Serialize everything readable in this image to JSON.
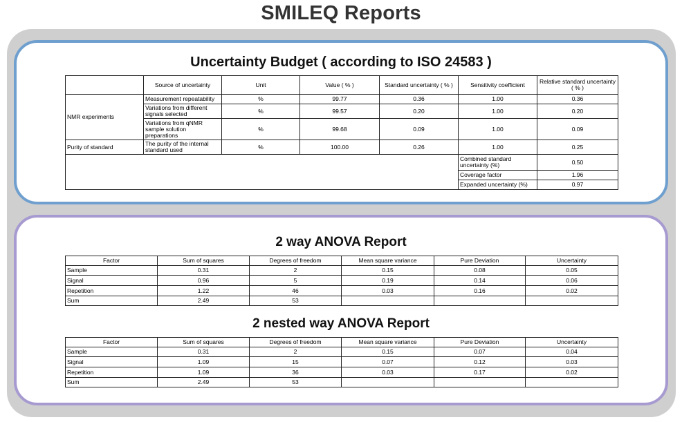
{
  "page_title": "SMILEQ Reports",
  "budget": {
    "title": "Uncertainty Budget ( according to ISO 24583 )",
    "headers": [
      "Source of uncertainty",
      "Unit",
      "Value ( % )",
      "Standard uncertainty ( % )",
      "Sensitivity coefficient",
      "Relative standard uncertainty ( % )"
    ],
    "groups": {
      "nmr": "NMR experiments",
      "purity": "Purity of standard"
    },
    "rows": [
      {
        "source": "Measurement repeatability",
        "unit": "%",
        "value": "99.77",
        "std": "0.36",
        "sens": "1.00",
        "rel": "0.36"
      },
      {
        "source": "Variations from different signals selected",
        "unit": "%",
        "value": "99.57",
        "std": "0.20",
        "sens": "1.00",
        "rel": "0.20"
      },
      {
        "source": "Variations from qNMR sample solution preparations",
        "unit": "%",
        "value": "99.68",
        "std": "0.09",
        "sens": "1.00",
        "rel": "0.09"
      },
      {
        "source": "The purity of the internal standard used",
        "unit": "%",
        "value": "100.00",
        "std": "0.26",
        "sens": "1.00",
        "rel": "0.25"
      }
    ],
    "summary": [
      {
        "label": "Combined standard uncertainty (%)",
        "value": "0.50"
      },
      {
        "label": "Coverage factor",
        "value": "1.96"
      },
      {
        "label": "Expanded uncertainty (%)",
        "value": "0.97"
      }
    ]
  },
  "anova": {
    "title": "2 way ANOVA Report",
    "headers": [
      "Factor",
      "Sum of squares",
      "Degrees of freedom",
      "Mean square variance",
      "Pure Deviation",
      "Uncertainty"
    ],
    "rows": [
      [
        "Sample",
        "0.31",
        "2",
        "0.15",
        "0.08",
        "0.05"
      ],
      [
        "Signal",
        "0.96",
        "5",
        "0.19",
        "0.14",
        "0.06"
      ],
      [
        "Repetition",
        "1.22",
        "46",
        "0.03",
        "0.16",
        "0.02"
      ],
      [
        "Sum",
        "2.49",
        "53",
        "",
        "",
        ""
      ]
    ]
  },
  "nested": {
    "title": "2 nested way ANOVA Report",
    "headers": [
      "Factor",
      "Sum of squares",
      "Degrees of freedom",
      "Mean square variance",
      "Pure Deviation",
      "Uncertainty"
    ],
    "rows": [
      [
        "Sample",
        "0.31",
        "2",
        "0.15",
        "0.07",
        "0.04"
      ],
      [
        "Signal",
        "1.09",
        "15",
        "0.07",
        "0.12",
        "0.03"
      ],
      [
        "Repetition",
        "1.09",
        "36",
        "0.03",
        "0.17",
        "0.02"
      ],
      [
        "Sum",
        "2.49",
        "53",
        "",
        "",
        ""
      ]
    ]
  }
}
